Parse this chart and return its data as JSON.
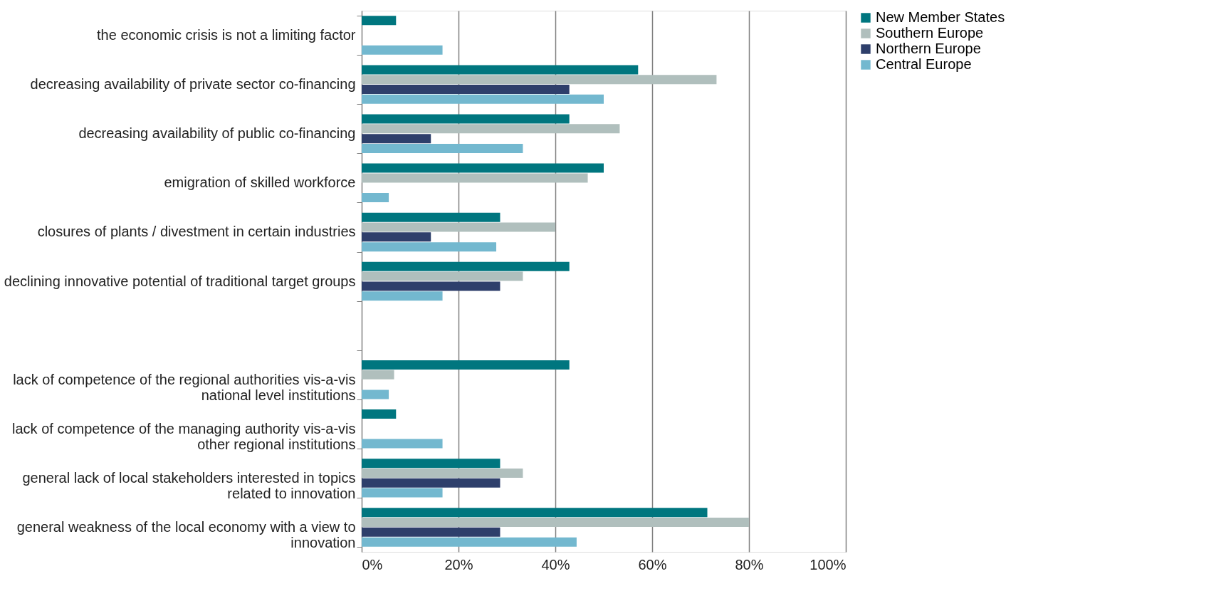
{
  "chart_data": {
    "type": "bar",
    "orientation": "horizontal",
    "categories": [
      "the economic crisis is not a limiting factor",
      "decreasing availability of private sector co-financing",
      "decreasing availability of public co-financing",
      "emigration of skilled workforce",
      "closures of plants / divestment in certain industries",
      "declining innovative potential of traditional target groups",
      null,
      "lack of competence of the regional authorities vis-a-vis national level institutions",
      "lack of competence of the managing authority vis-a-vis other regional institutions",
      "general lack of local stakeholders interested in topics related to innovation",
      "general weakness of the local economy with a view to innovation"
    ],
    "series": [
      {
        "name": "New Member States",
        "color": "#00767f",
        "values": [
          7.1,
          57.1,
          42.9,
          50,
          28.6,
          42.9,
          null,
          42.9,
          7.1,
          28.6,
          71.4
        ]
      },
      {
        "name": "Southern Europe",
        "color": "#b0bfbd",
        "values": [
          0,
          73.3,
          53.3,
          46.7,
          40,
          33.3,
          null,
          6.7,
          0,
          33.3,
          80
        ]
      },
      {
        "name": "Northern Europe",
        "color": "#2e3f6b",
        "values": [
          0,
          42.9,
          14.3,
          0,
          14.3,
          28.6,
          null,
          0,
          0,
          28.6,
          28.6
        ]
      },
      {
        "name": "Central Europe",
        "color": "#73b8cf",
        "values": [
          16.7,
          50,
          33.3,
          5.6,
          27.8,
          16.7,
          null,
          5.6,
          16.7,
          16.7,
          44.4
        ]
      }
    ],
    "xlim": [
      0,
      100
    ],
    "xticks": [
      {
        "value": 0,
        "label": "0%"
      },
      {
        "value": 20,
        "label": "20%"
      },
      {
        "value": 40,
        "label": "40%"
      },
      {
        "value": 60,
        "label": "60%"
      },
      {
        "value": 80,
        "label": "80%"
      },
      {
        "value": 100,
        "label": "100%"
      }
    ],
    "grid": "x",
    "legend": "right"
  }
}
